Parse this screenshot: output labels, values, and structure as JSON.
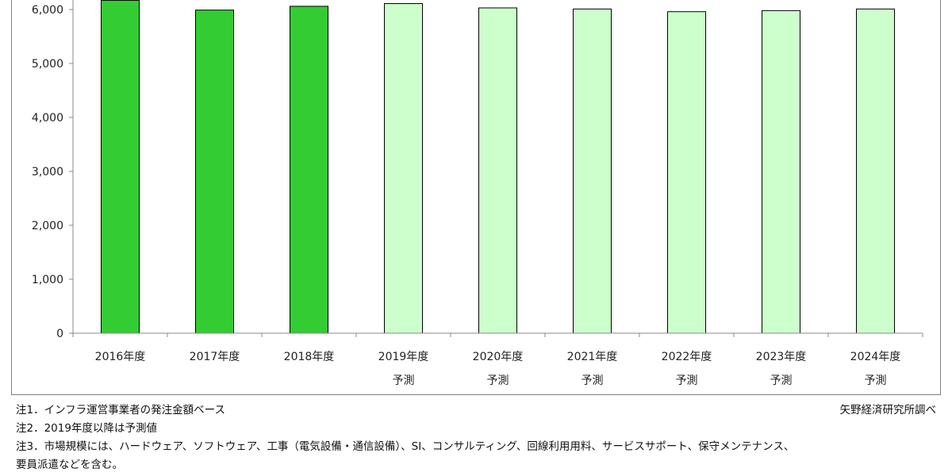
{
  "chart_data": {
    "type": "bar",
    "categories": [
      [
        "2016年度",
        ""
      ],
      [
        "2017年度",
        ""
      ],
      [
        "2018年度",
        ""
      ],
      [
        "2019年度",
        "予測"
      ],
      [
        "2020年度",
        "予測"
      ],
      [
        "2021年度",
        "予測"
      ],
      [
        "2022年度",
        "予測"
      ],
      [
        "2023年度",
        "予測"
      ],
      [
        "2024年度",
        "予測"
      ]
    ],
    "values": [
      6170,
      5990,
      6060,
      6110,
      6030,
      6010,
      5960,
      5980,
      6010
    ],
    "forecast": [
      false,
      false,
      false,
      true,
      true,
      true,
      true,
      true,
      true
    ],
    "yticks": [
      0,
      1000,
      2000,
      3000,
      4000,
      5000,
      6000
    ],
    "ytick_labels": [
      "0",
      "1,000",
      "2,000",
      "3,000",
      "4,000",
      "5,000",
      "6,000"
    ],
    "ylim": [
      0,
      6000
    ],
    "grid": false,
    "colors": {
      "actual": "#33cc33",
      "forecast": "#ccffcc",
      "bar_border": "#000000",
      "axis": "#888888"
    }
  },
  "notes": [
    "注1．インフラ運営事業者の発注金額ベース",
    "注2．2019年度以降は予測値",
    "注3．市場規模には、ハードウェア、ソフトウェア、工事（電気設備・通信設備）、SI、コンサルティング、回線利用用料、サービスサポート、保守メンテナンス、",
    "要員派遣などを含む。"
  ],
  "source": "矢野経済研究所調べ"
}
